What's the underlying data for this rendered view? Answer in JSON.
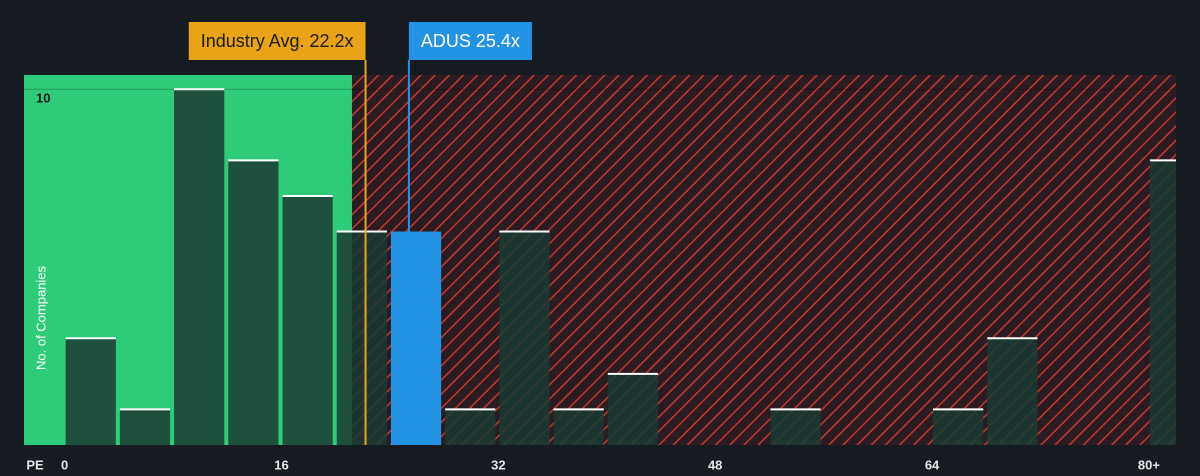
{
  "chart_data": {
    "type": "histogram",
    "x_label": "PE",
    "y_label": "No. of Companies",
    "bins": [
      0,
      4,
      8,
      12,
      16,
      20,
      24,
      28,
      32,
      36,
      40,
      44,
      48,
      52,
      56,
      60,
      64,
      68,
      72,
      76,
      80,
      84
    ],
    "values": [
      3,
      1,
      10,
      8,
      7,
      6,
      6,
      1,
      6,
      1,
      2,
      0,
      0,
      1,
      0,
      0,
      1,
      3,
      0,
      0,
      8
    ],
    "color": "#1b3a33",
    "xlim": [
      -3,
      82
    ],
    "ylim": [
      0,
      10.4
    ],
    "xticks": [
      0,
      16,
      32,
      48,
      64,
      {
        "value": 80,
        "label": "80+"
      }
    ],
    "yticks": [
      10
    ],
    "grid": true,
    "green_region_end": 21.2,
    "green_color": "#2ecc7a",
    "hatch_color": "#c0392b",
    "annotations": [
      {
        "label": "Industry Avg. 22.2x",
        "value": 22.2,
        "color": "#e8a317"
      },
      {
        "label": "ADUS 25.4x",
        "value": 25.4,
        "color": "#2393e6"
      }
    ]
  }
}
